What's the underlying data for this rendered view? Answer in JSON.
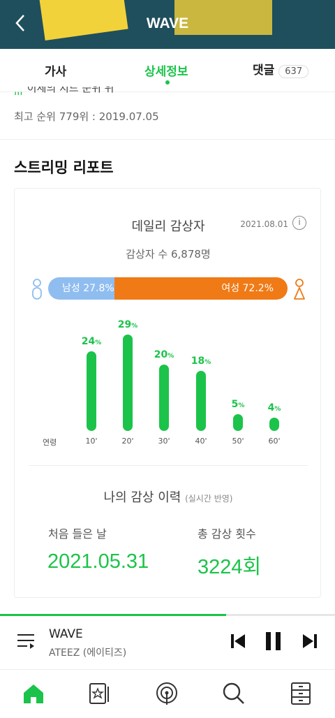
{
  "header": {
    "title": "WAVE"
  },
  "tabs": [
    {
      "label": "가사"
    },
    {
      "label": "상세정보"
    },
    {
      "label": "댓글",
      "count": "637"
    }
  ],
  "chart_peak_cut": "이세의 지드 순위 위",
  "peak_rank": "최고 순위 779위 : 2019.07.05",
  "streaming_report": {
    "title": "스트리밍 리포트",
    "daily_title": "데일리 감상자",
    "date": "2021.08.01",
    "listeners": "감상자 수 6,878명",
    "male_label": "남성 27.8%",
    "female_label": "여성 72.2%",
    "male_ratio": 27.8,
    "age_axis_label": "연령"
  },
  "chart_data": {
    "type": "bar",
    "categories": [
      "10'",
      "20'",
      "30'",
      "40'",
      "50'",
      "60'"
    ],
    "values": [
      24,
      29,
      20,
      18,
      5,
      4
    ],
    "value_labels": [
      "24",
      "29",
      "20",
      "18",
      "5",
      "4"
    ],
    "unit": "%",
    "xlabel": "연령",
    "colors": {
      "bar": "#1cc34a"
    }
  },
  "history": {
    "title": "나의 감상 이력",
    "subtitle": "(실시간 반영)",
    "first_label": "처음 들은 날",
    "first_value": "2021.05.31",
    "count_label": "총 감상 횟수",
    "count_value": "3224회"
  },
  "player": {
    "title": "WAVE",
    "artist": "ATEEZ (에이티즈)",
    "progress": 0.675
  },
  "colors": {
    "accent": "#1cc34a",
    "male": "#8fbdf0",
    "female": "#f07a16",
    "header_bg": "#1f4f5c"
  }
}
